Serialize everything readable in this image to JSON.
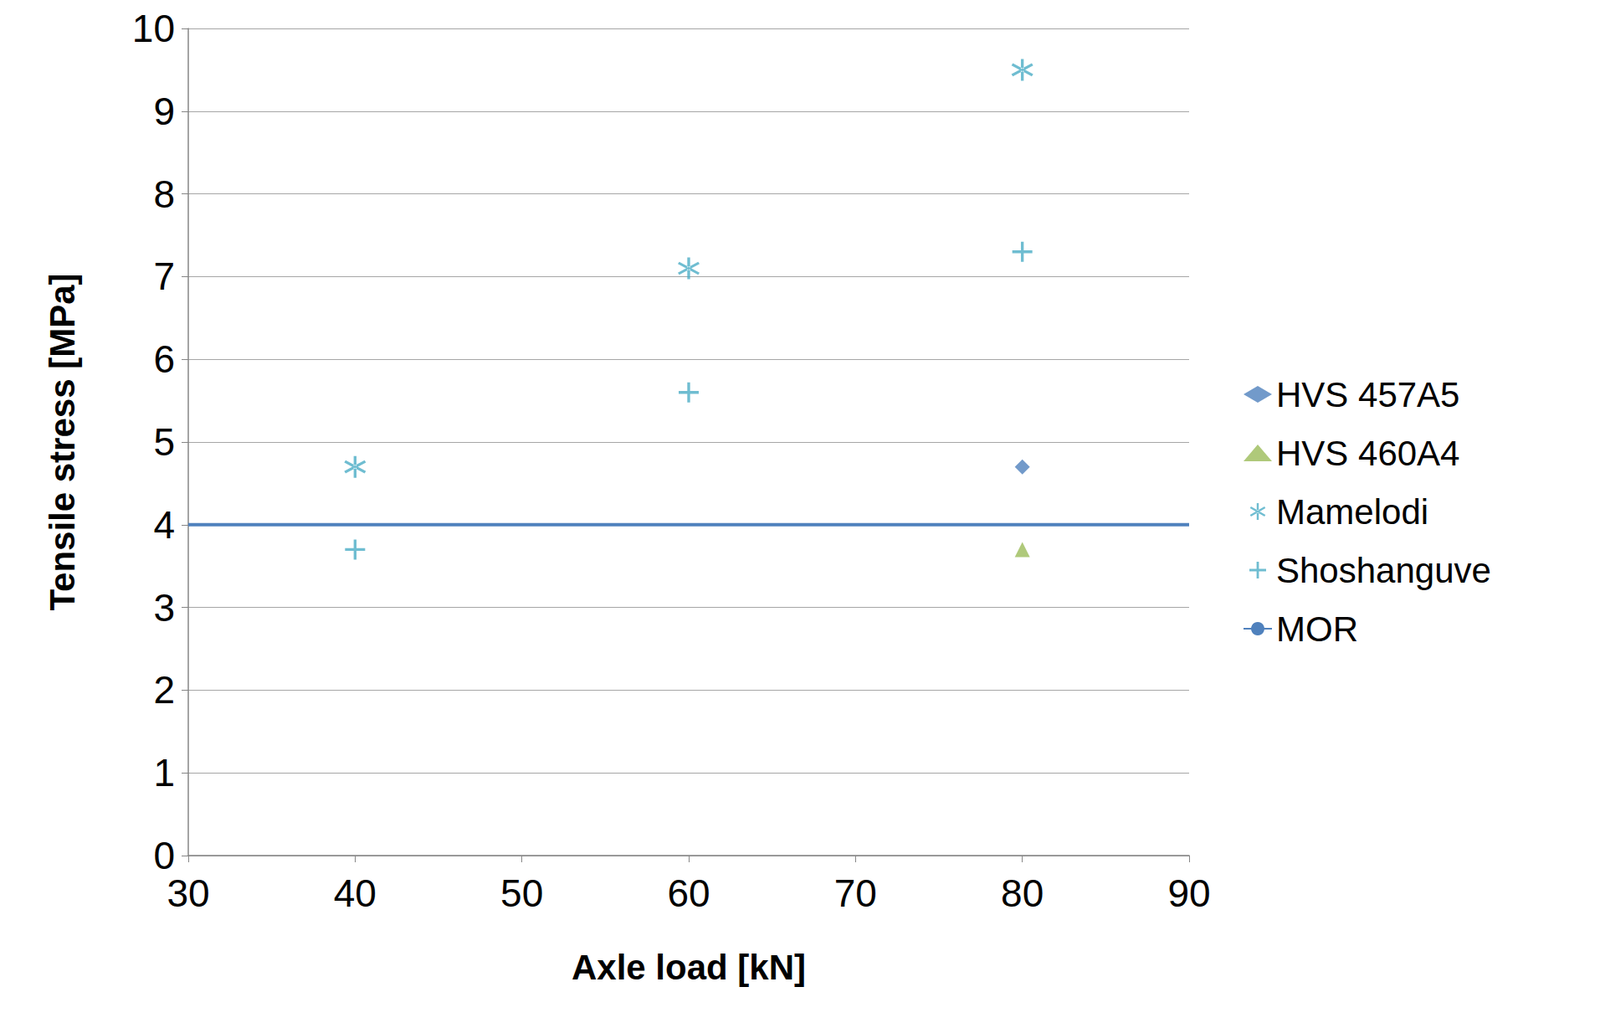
{
  "chart_data": {
    "type": "scatter",
    "x_label": "Axle load [kN]",
    "y_label": "Tensile stress [MPa]",
    "xlim": [
      30,
      90
    ],
    "xticks": [
      30,
      40,
      50,
      60,
      70,
      80,
      90
    ],
    "ylim": [
      0,
      10
    ],
    "yticks": [
      0,
      1,
      2,
      3,
      4,
      5,
      6,
      7,
      8,
      9,
      10
    ],
    "grid": true,
    "legend": "right",
    "series": [
      {
        "name": "HVS 457A5",
        "type": "scatter",
        "color": "#4f81bd",
        "marker": "diamond",
        "x": [
          80
        ],
        "values": [
          4.7
        ]
      },
      {
        "name": "HVS 460A4",
        "type": "scatter",
        "color": "#9bbb59",
        "marker": "triangle",
        "x": [
          80
        ],
        "values": [
          3.7
        ]
      },
      {
        "name": "Mamelodi",
        "type": "scatter",
        "color": "#4bacc6",
        "marker": "asterisk",
        "x": [
          40,
          60,
          80
        ],
        "values": [
          4.7,
          7.1,
          9.5
        ]
      },
      {
        "name": "Shoshanguve",
        "type": "scatter",
        "color": "#4bacc6",
        "marker": "plus",
        "x": [
          40,
          60,
          80
        ],
        "values": [
          3.7,
          5.6,
          7.3
        ]
      },
      {
        "name": "MOR",
        "type": "line",
        "color": "#4f81bd",
        "line_style": "solid",
        "x": [
          30,
          90
        ],
        "values": [
          4,
          4
        ]
      }
    ]
  }
}
